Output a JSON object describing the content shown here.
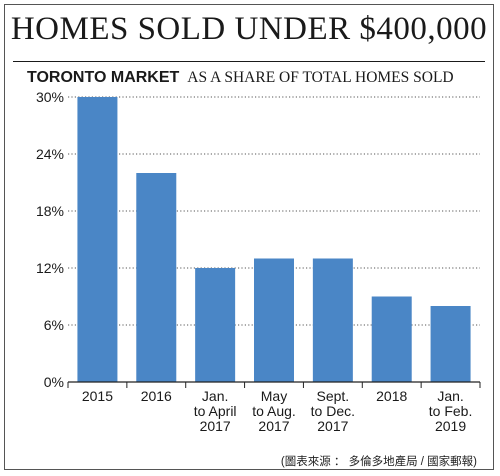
{
  "title": "HOMES SOLD UNDER $400,000",
  "subtitle_market": "TORONTO MARKET",
  "subtitle_share": "AS A SHARE OF TOTAL HOMES SOLD",
  "source": "(圖表來源 ： 多倫多地產局 / 國家郵報)",
  "colors": {
    "bar": "#4a86c6",
    "grid": "#555555",
    "axis": "#222222"
  },
  "chart_data": {
    "type": "bar",
    "categories": [
      [
        "2015"
      ],
      [
        "2016"
      ],
      [
        "Jan.",
        "to April",
        "2017"
      ],
      [
        "May",
        "to Aug.",
        "2017"
      ],
      [
        "Sept.",
        "to Dec.",
        "2017"
      ],
      [
        "2018"
      ],
      [
        "Jan.",
        "to Feb.",
        "2019"
      ]
    ],
    "values": [
      30,
      22,
      12,
      13,
      13,
      9,
      8
    ],
    "yticks": [
      0,
      6,
      12,
      18,
      24,
      30
    ],
    "ytick_labels": [
      "0%",
      "6%",
      "12%",
      "18%",
      "24%",
      "30%"
    ],
    "ylim": [
      0,
      30
    ],
    "grid": true
  }
}
